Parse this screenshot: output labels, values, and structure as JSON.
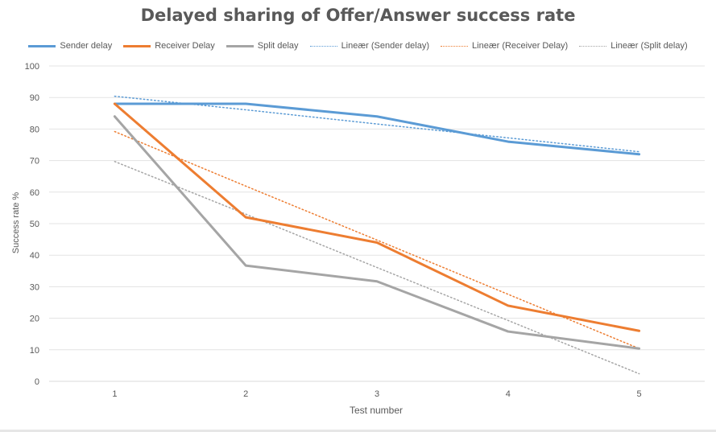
{
  "chart_data": {
    "type": "line",
    "title": "Delayed sharing of Offer/Answer success rate",
    "xlabel": "Test number",
    "ylabel": "Success rate %",
    "categories": [
      "1",
      "2",
      "3",
      "4",
      "5"
    ],
    "ylim": [
      0,
      100
    ],
    "yticks": [
      "0",
      "10",
      "20",
      "30",
      "40",
      "50",
      "60",
      "70",
      "80",
      "90",
      "100"
    ],
    "grid": true,
    "legend_position": "top",
    "series": [
      {
        "name": "Sender delay",
        "values": [
          88,
          88,
          84,
          76,
          72
        ],
        "color": "#5B9BD5",
        "style": "solid"
      },
      {
        "name": "Receiver Delay",
        "values": [
          88,
          52,
          44,
          24,
          16
        ],
        "color": "#ED7D31",
        "style": "solid"
      },
      {
        "name": "Split delay",
        "values": [
          84,
          36.7,
          31.7,
          15.8,
          10.4
        ],
        "color": "#A5A5A5",
        "style": "solid"
      }
    ],
    "trendlines": [
      {
        "name": "Lineær (Sender delay)",
        "values": [
          90.4,
          86.1,
          81.6,
          77.2,
          72.8
        ],
        "color": "#5B9BD5",
        "style": "dotted"
      },
      {
        "name": "Lineær (Receiver Delay)",
        "values": [
          79.2,
          61.9,
          44.8,
          27.6,
          10.4
        ],
        "color": "#ED7D31",
        "style": "dotted"
      },
      {
        "name": "Lineær (Split delay)",
        "values": [
          69.7,
          53.0,
          36.1,
          19.3,
          2.4
        ],
        "color": "#A5A5A5",
        "style": "dotted"
      }
    ]
  }
}
